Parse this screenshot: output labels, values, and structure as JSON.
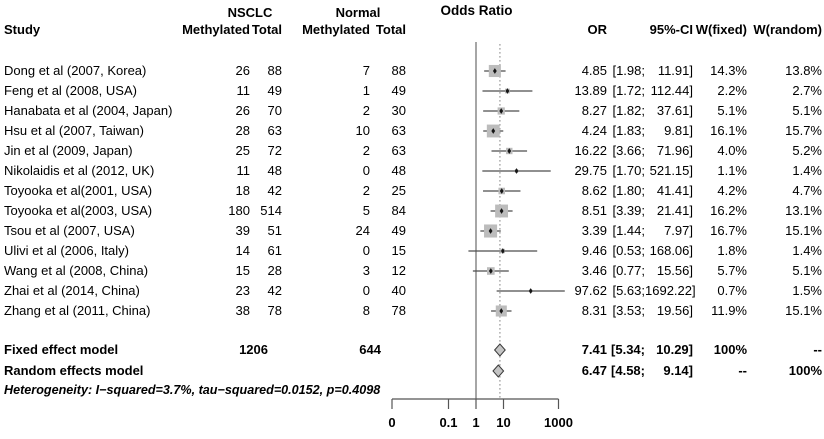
{
  "table": {
    "header": {
      "study": "Study",
      "group_nsclc": "NSCLC",
      "group_normal": "Normal",
      "methylated": "Methylated",
      "total": "Total",
      "or": "OR",
      "ci": "95%-CI",
      "w_fixed": "W(fixed)",
      "w_random": "W(random)"
    }
  },
  "chart_data": {
    "type": "forest",
    "title": "Odds Ratio",
    "x_scale": "log10",
    "x_axis_tick_labels": [
      "0",
      "0.1",
      "1",
      "10",
      "1000"
    ],
    "x_axis_tick_values": [
      null,
      0.1,
      1,
      10,
      1000
    ],
    "reference_line_at": 1,
    "dotted_line_at_pooled_or": 7.41,
    "studies": [
      {
        "study": "Dong et al (2007, Korea)",
        "methylated_nsclc": "26",
        "total_nsclc": "88",
        "methylated_normal": "7",
        "total_normal": "88",
        "or": "4.85",
        "ci_lo": "1.98",
        "ci_hi": "11.91",
        "w_fixed": "14.3%",
        "w_random": "13.8%"
      },
      {
        "study": "Feng et al (2008, USA)",
        "methylated_nsclc": "11",
        "total_nsclc": "49",
        "methylated_normal": "1",
        "total_normal": "49",
        "or": "13.89",
        "ci_lo": "1.72",
        "ci_hi": "112.44",
        "w_fixed": "2.2%",
        "w_random": "2.7%"
      },
      {
        "study": "Hanabata et al (2004, Japan)",
        "methylated_nsclc": "26",
        "total_nsclc": "70",
        "methylated_normal": "2",
        "total_normal": "30",
        "or": "8.27",
        "ci_lo": "1.82",
        "ci_hi": "37.61",
        "w_fixed": "5.1%",
        "w_random": "5.1%"
      },
      {
        "study": "Hsu et al (2007, Taiwan)",
        "methylated_nsclc": "28",
        "total_nsclc": "63",
        "methylated_normal": "10",
        "total_normal": "63",
        "or": "4.24",
        "ci_lo": "1.83",
        "ci_hi": "9.81",
        "w_fixed": "16.1%",
        "w_random": "15.7%"
      },
      {
        "study": "Jin et al (2009, Japan)",
        "methylated_nsclc": "25",
        "total_nsclc": "72",
        "methylated_normal": "2",
        "total_normal": "63",
        "or": "16.22",
        "ci_lo": "3.66",
        "ci_hi": "71.96",
        "w_fixed": "4.0%",
        "w_random": "5.2%"
      },
      {
        "study": "Nikolaidis et al (2012, UK)",
        "methylated_nsclc": "11",
        "total_nsclc": "48",
        "methylated_normal": "0",
        "total_normal": "48",
        "or": "29.75",
        "ci_lo": "1.70",
        "ci_hi": "521.15",
        "w_fixed": "1.1%",
        "w_random": "1.4%"
      },
      {
        "study": "Toyooka et al(2001, USA)",
        "methylated_nsclc": "18",
        "total_nsclc": "42",
        "methylated_normal": "2",
        "total_normal": "25",
        "or": "8.62",
        "ci_lo": "1.80",
        "ci_hi": "41.41",
        "w_fixed": "4.2%",
        "w_random": "4.7%"
      },
      {
        "study": "Toyooka et al(2003, USA)",
        "methylated_nsclc": "180",
        "total_nsclc": "514",
        "methylated_normal": "5",
        "total_normal": "84",
        "or": "8.51",
        "ci_lo": "3.39",
        "ci_hi": "21.41",
        "w_fixed": "16.2%",
        "w_random": "13.1%"
      },
      {
        "study": "Tsou et al (2007, USA)",
        "methylated_nsclc": "39",
        "total_nsclc": "51",
        "methylated_normal": "24",
        "total_normal": "49",
        "or": "3.39",
        "ci_lo": "1.44",
        "ci_hi": "7.97",
        "w_fixed": "16.7%",
        "w_random": "15.1%"
      },
      {
        "study": "Ulivi et al (2006, Italy)",
        "methylated_nsclc": "14",
        "total_nsclc": "61",
        "methylated_normal": "0",
        "total_normal": "15",
        "or": "9.46",
        "ci_lo": "0.53",
        "ci_hi": "168.06",
        "w_fixed": "1.8%",
        "w_random": "1.4%"
      },
      {
        "study": "Wang et al (2008, China)",
        "methylated_nsclc": "15",
        "total_nsclc": "28",
        "methylated_normal": "3",
        "total_normal": "12",
        "or": "3.46",
        "ci_lo": "0.77",
        "ci_hi": "15.56",
        "w_fixed": "5.7%",
        "w_random": "5.1%"
      },
      {
        "study": "Zhai et al (2014, China)",
        "methylated_nsclc": "23",
        "total_nsclc": "42",
        "methylated_normal": "0",
        "total_normal": "40",
        "or": "97.62",
        "ci_lo": "5.63",
        "ci_hi": "1692.22",
        "w_fixed": "0.7%",
        "w_random": "1.5%"
      },
      {
        "study": "Zhang et al (2011, China)",
        "methylated_nsclc": "38",
        "total_nsclc": "78",
        "methylated_normal": "8",
        "total_normal": "78",
        "or": "8.31",
        "ci_lo": "3.53",
        "ci_hi": "19.56",
        "w_fixed": "11.9%",
        "w_random": "15.1%"
      }
    ],
    "fixed": {
      "label": "Fixed effect model",
      "total_nsclc": "1206",
      "total_normal": "644",
      "or": "7.41",
      "ci_lo": "5.34",
      "ci_hi": "10.29",
      "w_fixed": "100%",
      "w_random": "--"
    },
    "random": {
      "label": "Random effects model",
      "or": "6.47",
      "ci_lo": "4.58",
      "ci_hi": "9.14",
      "w_fixed": "--",
      "w_random": "100%"
    },
    "heterogeneity": "Heterogeneity: I−squared=3.7%, tau−squared=0.0152, p=0.4098",
    "colors": {
      "square_fill": "#bcbcbc",
      "diamond_fill": "#c4c4c4",
      "diamond_stroke": "#3a3a3a",
      "ci_line": "#4d4d4d",
      "marker": "#161616",
      "reference_line": "#808080",
      "dotted_line": "#9a9a9a",
      "axis": "#555555",
      "text": "#000000"
    }
  }
}
